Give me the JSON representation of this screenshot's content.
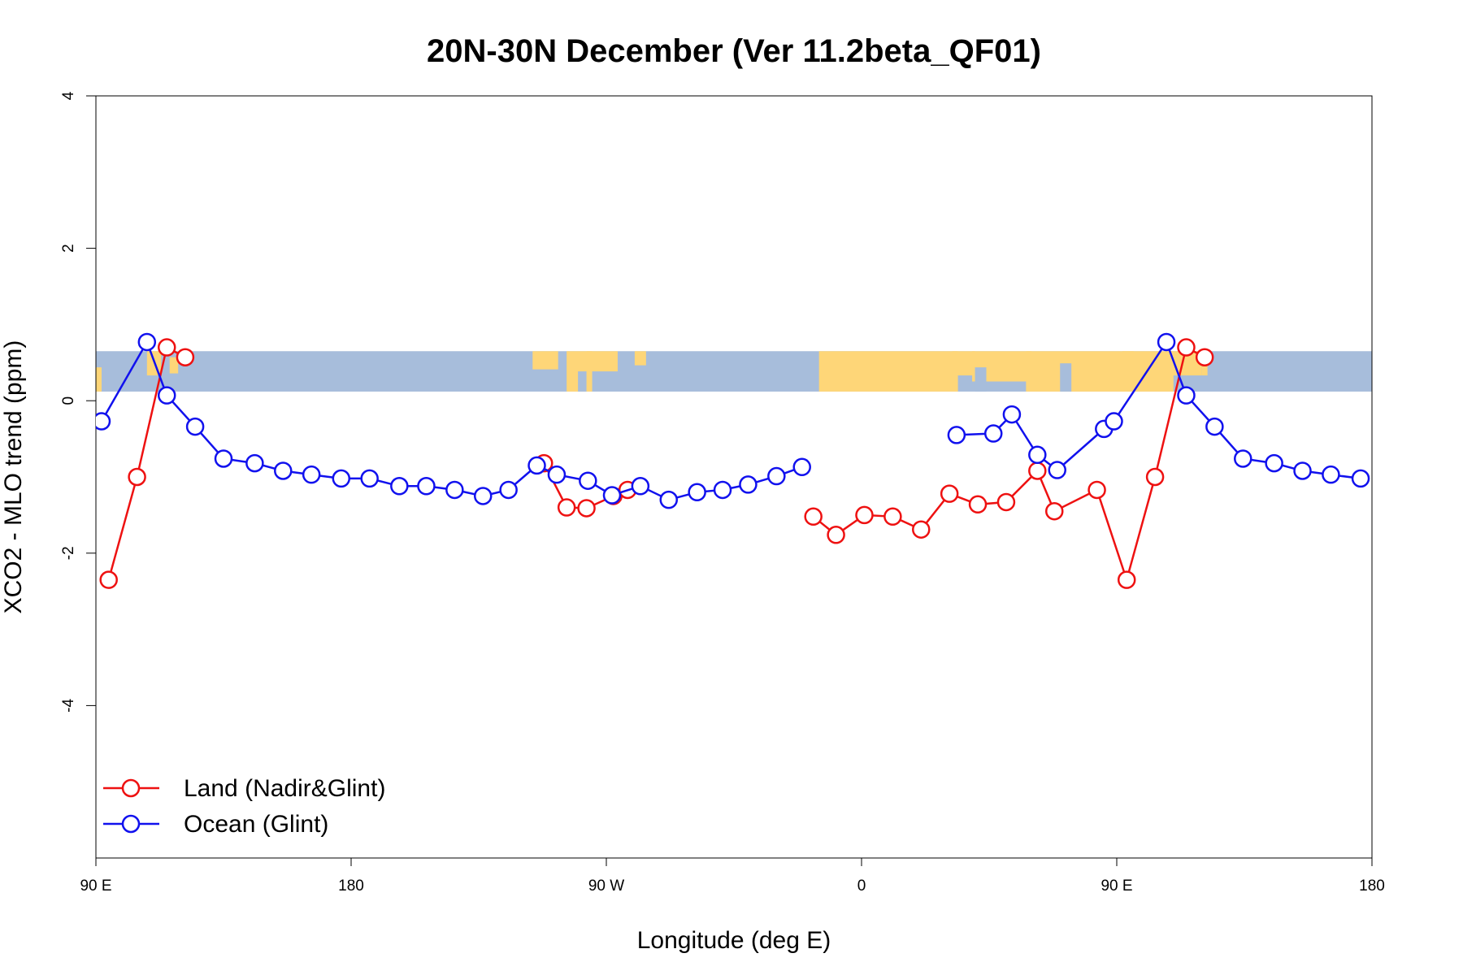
{
  "chart_data": {
    "type": "line",
    "title": "20N-30N December (Ver 11.2beta_QF01)",
    "xlabel": "Longitude (deg E)",
    "ylabel": "XCO2 - MLO trend (ppm)",
    "xlim": [
      90,
      540
    ],
    "ylim": [
      -6,
      4
    ],
    "x_ticks": [
      {
        "value": 90,
        "label": "90 E"
      },
      {
        "value": 180,
        "label": "180"
      },
      {
        "value": 270,
        "label": "90 W"
      },
      {
        "value": 360,
        "label": "0"
      },
      {
        "value": 450,
        "label": "90 E"
      },
      {
        "value": 540,
        "label": "180"
      }
    ],
    "y_ticks": [
      {
        "value": 4,
        "label": "4"
      },
      {
        "value": 2,
        "label": "2"
      },
      {
        "value": 0,
        "label": "0"
      },
      {
        "value": -2,
        "label": "-2"
      },
      {
        "value": -4,
        "label": "-4"
      }
    ],
    "map_strip": {
      "ymin": 0.12,
      "ymax": 0.65,
      "ocean_color": "#a7bddb",
      "land_color": "#fed678"
    },
    "legend": {
      "position": "bottom-left",
      "entries": [
        "Land (Nadir&Glint)",
        "Ocean (Glint)"
      ]
    },
    "series": [
      {
        "name": "Land (Nadir&Glint)",
        "color": "#ee1111",
        "segments": [
          [
            [
              94.5,
              -2.35
            ],
            [
              104.5,
              -1.0
            ],
            [
              115,
              0.7
            ],
            [
              121.5,
              0.57
            ]
          ],
          [
            [
              248,
              -0.82
            ],
            [
              256,
              -1.4
            ],
            [
              263,
              -1.41
            ],
            [
              272.5,
              -1.25
            ],
            [
              277.5,
              -1.17
            ]
          ],
          [
            [
              343,
              -1.52
            ],
            [
              351,
              -1.76
            ],
            [
              361,
              -1.5
            ],
            [
              371,
              -1.52
            ],
            [
              381,
              -1.69
            ],
            [
              391,
              -1.22
            ],
            [
              401,
              -1.36
            ],
            [
              411,
              -1.33
            ],
            [
              422,
              -0.92
            ],
            [
              428,
              -1.45
            ],
            [
              443,
              -1.17
            ],
            [
              453.5,
              -2.35
            ],
            [
              463.5,
              -1.0
            ],
            [
              474.5,
              0.7
            ],
            [
              481,
              0.57
            ]
          ]
        ]
      },
      {
        "name": "Ocean (Glint)",
        "color": "#1111ee",
        "segments": [
          [
            [
              92,
              -0.27
            ],
            [
              108,
              0.77
            ],
            [
              115,
              0.07
            ],
            [
              125,
              -0.34
            ],
            [
              135,
              -0.76
            ],
            [
              146,
              -0.82
            ],
            [
              156,
              -0.92
            ],
            [
              166,
              -0.97
            ],
            [
              176.5,
              -1.02
            ],
            [
              186.5,
              -1.02
            ],
            [
              197,
              -1.12
            ],
            [
              206.5,
              -1.12
            ],
            [
              216.5,
              -1.17
            ],
            [
              226.5,
              -1.25
            ],
            [
              235.5,
              -1.17
            ],
            [
              245.5,
              -0.85
            ],
            [
              252.5,
              -0.97
            ],
            [
              263.5,
              -1.05
            ],
            [
              272,
              -1.24
            ],
            [
              282,
              -1.12
            ],
            [
              292,
              -1.3
            ],
            [
              302,
              -1.2
            ],
            [
              311,
              -1.17
            ],
            [
              320,
              -1.1
            ],
            [
              330,
              -0.99
            ],
            [
              339,
              -0.87
            ]
          ],
          [
            [
              393.5,
              -0.45
            ],
            [
              406.5,
              -0.43
            ],
            [
              413,
              -0.18
            ],
            [
              422,
              -0.71
            ],
            [
              429,
              -0.91
            ],
            [
              445.5,
              -0.37
            ],
            [
              449,
              -0.27
            ],
            [
              467.5,
              0.77
            ],
            [
              474.5,
              0.07
            ],
            [
              484.5,
              -0.34
            ],
            [
              494.5,
              -0.76
            ],
            [
              505.5,
              -0.82
            ],
            [
              515.5,
              -0.92
            ],
            [
              525.5,
              -0.97
            ],
            [
              536,
              -1.02
            ]
          ]
        ]
      }
    ]
  }
}
